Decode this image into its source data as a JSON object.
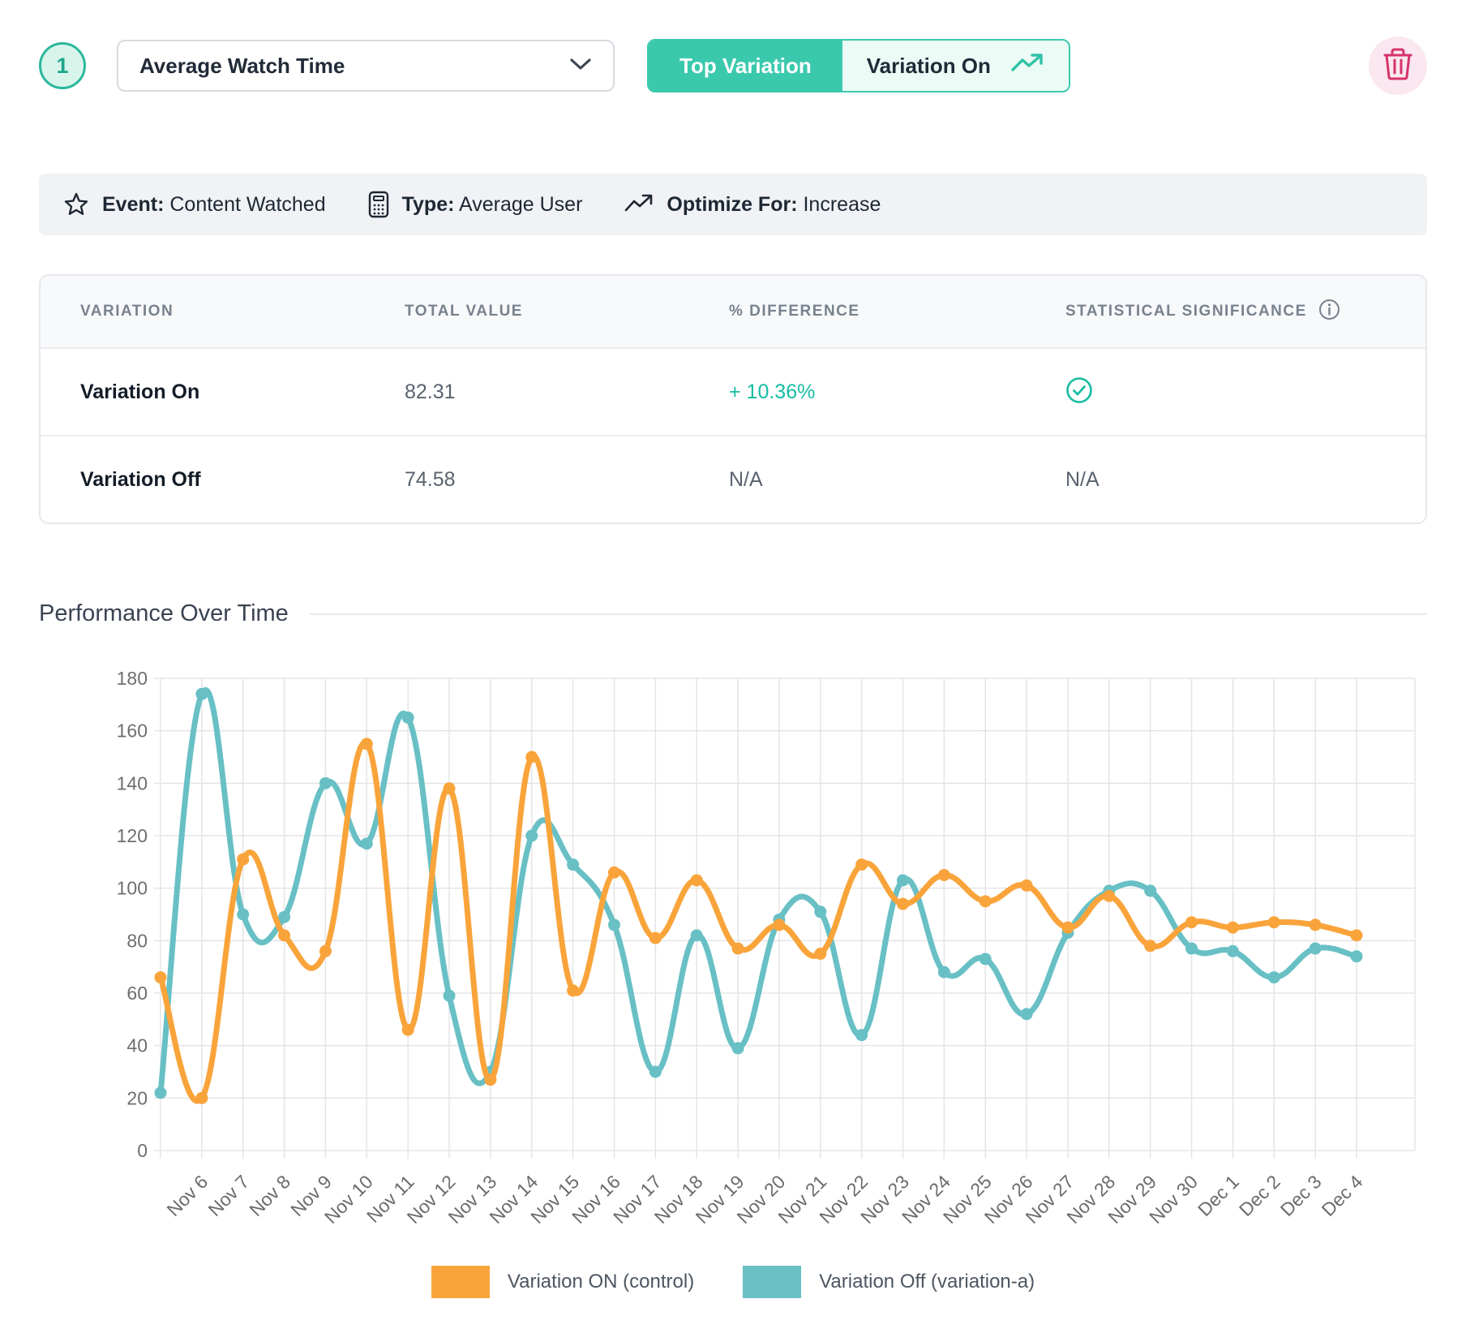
{
  "header": {
    "index_badge": "1",
    "metric_dropdown": {
      "value": "Average Watch Time"
    },
    "toggle": {
      "active_label": "Top Variation",
      "result_label": "Variation On"
    }
  },
  "summary_bar": {
    "event_label": "Event:",
    "event_value": "Content Watched",
    "type_label": "Type:",
    "type_value": "Average User",
    "optimize_label": "Optimize For:",
    "optimize_value": "Increase"
  },
  "results_table": {
    "columns": [
      "VARIATION",
      "TOTAL VALUE",
      "% DIFFERENCE",
      "STATISTICAL SIGNIFICANCE"
    ],
    "rows": [
      {
        "variation": "Variation On",
        "total_value": "82.31",
        "difference": "+ 10.36%",
        "significance": "significant"
      },
      {
        "variation": "Variation Off",
        "total_value": "74.58",
        "difference": "N/A",
        "significance": "N/A"
      }
    ]
  },
  "chart_section": {
    "title": "Performance Over Time"
  },
  "colors": {
    "accent_teal": "#3BC9AE",
    "badge_teal": "#2BB89C",
    "positive_teal": "#16BCA2",
    "trash_pink": "#D6336C",
    "series_orange": "#F9A43B",
    "series_teal": "#68C0C5"
  },
  "chart_data": {
    "type": "line",
    "title": "Performance Over Time",
    "xlabel": "",
    "ylabel": "",
    "ylim": [
      0,
      180
    ],
    "y_ticks": [
      0,
      20,
      40,
      60,
      80,
      100,
      120,
      140,
      160,
      180
    ],
    "grid": true,
    "legend_position": "bottom",
    "x_labels": [
      "",
      "Nov 6",
      "Nov 7",
      "Nov 8",
      "Nov 9",
      "Nov 10",
      "Nov 11",
      "Nov 12",
      "Nov 13",
      "Nov 14",
      "Nov 15",
      "Nov 16",
      "Nov 17",
      "Nov 18",
      "Nov 19",
      "Nov 20",
      "Nov 21",
      "Nov 22",
      "Nov 23",
      "Nov 24",
      "Nov 25",
      "Nov 26",
      "Nov 27",
      "Nov 28",
      "Nov 29",
      "Nov 30",
      "Dec 1",
      "Dec 2",
      "Dec 3",
      "Dec 4"
    ],
    "series": [
      {
        "name": "Variation ON (control)",
        "color": "#F9A43B",
        "values": [
          66,
          20,
          111,
          82,
          76,
          155,
          46,
          138,
          27,
          150,
          61,
          106,
          81,
          103,
          77,
          86,
          75,
          109,
          94,
          105,
          95,
          101,
          85,
          97,
          78,
          87,
          85,
          87,
          86,
          82
        ]
      },
      {
        "name": "Variation Off (variation-a)",
        "color": "#68C0C5",
        "values": [
          22,
          174,
          90,
          89,
          140,
          117,
          165,
          59,
          30,
          120,
          109,
          86,
          30,
          82,
          39,
          88,
          91,
          44,
          103,
          68,
          73,
          52,
          83,
          99,
          99,
          77,
          76,
          66,
          77,
          74
        ]
      }
    ]
  }
}
